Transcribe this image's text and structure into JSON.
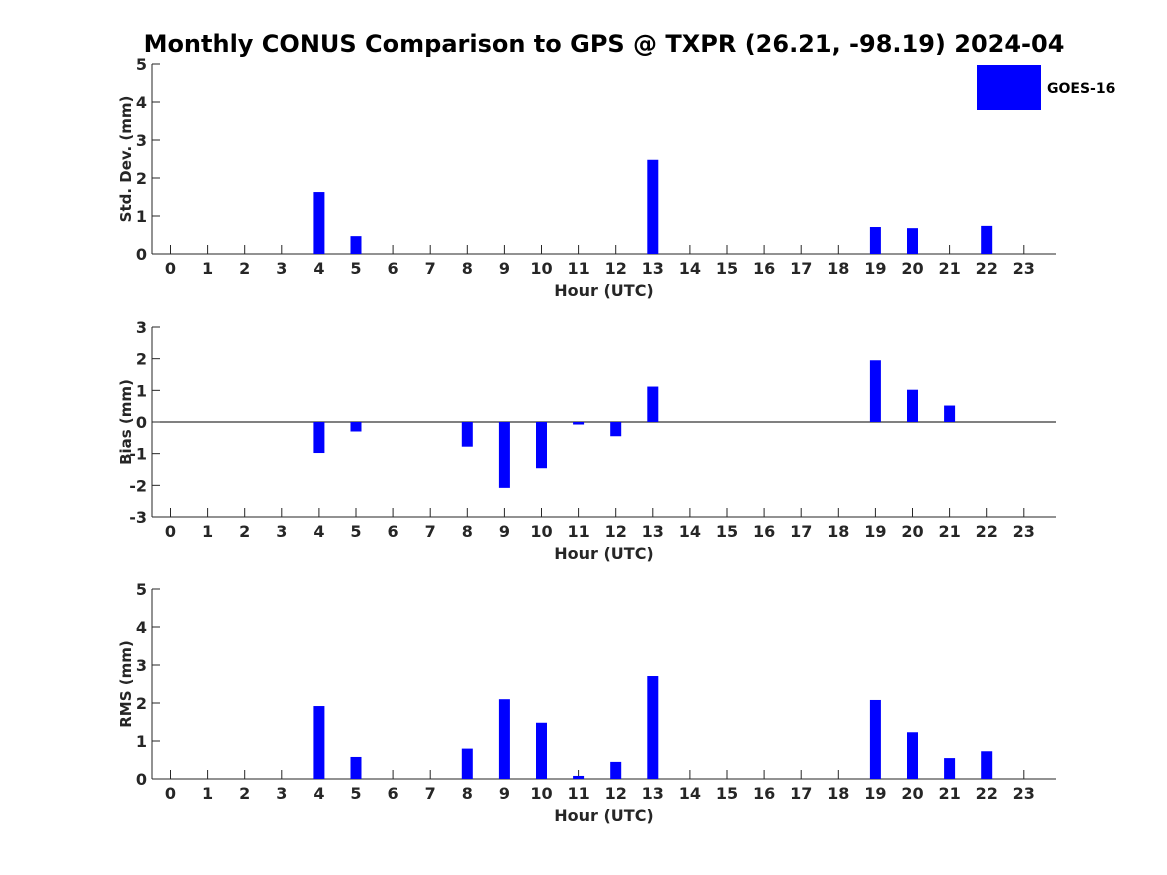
{
  "chart_data": {
    "title": "Monthly CONUS Comparison to GPS @ TXPR (26.21, -98.19) 2024-04",
    "legend": {
      "label": "GOES-16",
      "color": "#0000ff",
      "placement": "top-right"
    },
    "categories": [
      "0",
      "1",
      "2",
      "3",
      "4",
      "5",
      "6",
      "7",
      "8",
      "9",
      "10",
      "11",
      "12",
      "13",
      "14",
      "15",
      "16",
      "17",
      "18",
      "19",
      "20",
      "21",
      "22",
      "23"
    ],
    "panels": [
      {
        "type": "bar",
        "name": "std-dev",
        "xlabel": "Hour (UTC)",
        "ylabel": "Std. Dev. (mm)",
        "ylim": [
          0,
          5
        ],
        "yticks": [
          0,
          1,
          2,
          3,
          4,
          5
        ],
        "values": [
          null,
          null,
          null,
          null,
          1.63,
          0.47,
          null,
          null,
          null,
          null,
          null,
          null,
          null,
          2.48,
          null,
          null,
          null,
          null,
          null,
          0.71,
          0.68,
          null,
          0.74,
          null
        ]
      },
      {
        "type": "bar",
        "name": "bias",
        "xlabel": "Hour (UTC)",
        "ylabel": "Bias (mm)",
        "ylim": [
          -3,
          3
        ],
        "yticks": [
          -3,
          -2,
          -1,
          0,
          1,
          2,
          3
        ],
        "values": [
          null,
          null,
          null,
          null,
          -0.98,
          -0.3,
          null,
          null,
          -0.78,
          -2.08,
          -1.46,
          -0.08,
          -0.45,
          1.12,
          null,
          null,
          null,
          null,
          null,
          1.95,
          1.02,
          0.52,
          null,
          null
        ]
      },
      {
        "type": "bar",
        "name": "rms",
        "xlabel": "Hour (UTC)",
        "ylabel": "RMS (mm)",
        "ylim": [
          0,
          5
        ],
        "yticks": [
          0,
          1,
          2,
          3,
          4,
          5
        ],
        "values": [
          null,
          null,
          null,
          null,
          1.92,
          0.58,
          null,
          null,
          0.8,
          2.1,
          1.48,
          0.08,
          0.45,
          2.71,
          null,
          null,
          null,
          null,
          null,
          2.08,
          1.23,
          0.55,
          0.73,
          null
        ]
      }
    ]
  }
}
